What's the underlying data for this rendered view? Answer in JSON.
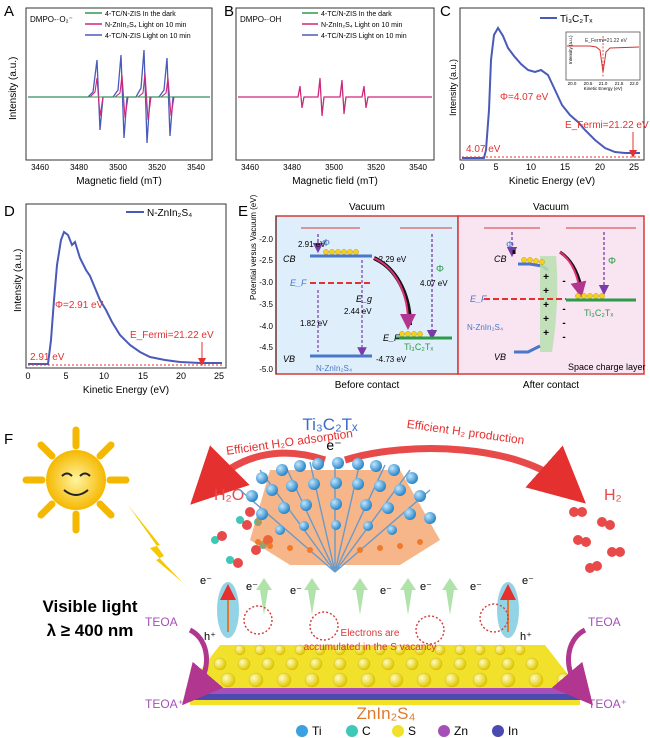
{
  "panels": {
    "A": {
      "letter": "A",
      "title": "DMPO-·O₂⁻",
      "xlabel": "Magnetic field (mT)",
      "ylabel": "Intensity (a.u.)",
      "legend": [
        "4-TC/N-ZIS In the dark",
        "N-ZnIn₂S₄ Light on 10 min",
        "4-TC/N-ZIS Light on 10 min"
      ]
    },
    "B": {
      "letter": "B",
      "title": "DMPO-·OH",
      "xlabel": "Magnetic field (mT)",
      "ylabel": "Intensity (a.u.)",
      "legend": [
        "4-TC/N-ZIS In the dark",
        "N-ZnIn₂S₄ Light on 10 min",
        "4-TC/N-ZIS Light on 10 min"
      ]
    },
    "C": {
      "letter": "C",
      "legend": "Ti₃C₂Tₓ",
      "xlabel": "Kinetic Energy (eV)",
      "ylabel": "Intensity (a.u.)",
      "phi": "Φ=4.07 eV",
      "efermi": "E_Fermi=21.22 eV",
      "cutoff": "4.07 eV",
      "inset_label": "E_Fermi=21.22 eV",
      "inset_xlabel": "Kinetic Energy (eV)",
      "inset_ylabel": "Intensity (a.u.)",
      "inset_ticks": [
        "20.0",
        "20.5",
        "21.0",
        "21.5",
        "22.0"
      ]
    },
    "D": {
      "letter": "D",
      "legend": "N-ZnIn₂S₄",
      "xlabel": "Kinetic Energy (eV)",
      "ylabel": "Intensity (a.u.)",
      "phi": "Φ=2.91 eV",
      "efermi": "E_Fermi=21.22 eV",
      "cutoff": "2.91 eV"
    },
    "E": {
      "letter": "E",
      "ylabel": "Potential versus Vacuum (eV)",
      "vacuum": "Vacuum",
      "before": "Before contact",
      "after": "After contact",
      "cb": "CB",
      "vb": "VB",
      "ef": "E_F",
      "eg": "E_g",
      "phi": "Φ",
      "cb_val": "-2.29 eV",
      "phi_nzis": "2.91 eV",
      "ef_dist": "1.82 eV",
      "gap": "2.44 eV",
      "vb_val": "-4.73 eV",
      "phi_ti": "4.07 eV",
      "nzis": "N-ZnIn₂S₄",
      "ti": "Ti₃C₂Tₓ",
      "space_charge": "Space charge layer",
      "plus": "+",
      "minus": "-"
    },
    "F": {
      "letter": "F",
      "ti": "Ti₃C₂Tₓ",
      "h2o_ads": "Efficient H₂O adsorption",
      "h2_prod": "Efficient H₂ production",
      "h2o": "H₂O",
      "h2": "H₂",
      "visible1": "Visible light",
      "visible2": "λ ≥ 400 nm",
      "teoa": "TEOA",
      "teoa_plus": "TEOA⁺",
      "electron": "e⁻",
      "hole": "h⁺",
      "vacancy1": "Electrons are",
      "vacancy2": "accumulated in the S vacancy",
      "zis": "ZnIn₂S₄"
    }
  },
  "axes": {
    "ab_ticks": [
      "3460",
      "3480",
      "3500",
      "3520",
      "3540"
    ],
    "c_ticks": [
      "0",
      "5",
      "10",
      "15",
      "20",
      "25"
    ],
    "d_ticks": [
      "0",
      "5",
      "10",
      "15",
      "20",
      "25"
    ],
    "e_ticks": [
      "-2.0",
      "-2.5",
      "-3.0",
      "-3.5",
      "-4.0",
      "-4.5",
      "-5.0"
    ]
  },
  "legend_atoms": [
    {
      "label": "Ti",
      "color": "#3aa0e0"
    },
    {
      "label": "C",
      "color": "#3ec8b8"
    },
    {
      "label": "S",
      "color": "#f2e12a"
    },
    {
      "label": "Zn",
      "color": "#a64fb8"
    },
    {
      "label": "In",
      "color": "#4a4ab0"
    }
  ],
  "colors": {
    "green": "#2e9a4a",
    "magenta": "#d2247e",
    "blue": "#4a5ab8",
    "red": "#e53030",
    "purple_arrow": "#7a3aa8"
  }
}
